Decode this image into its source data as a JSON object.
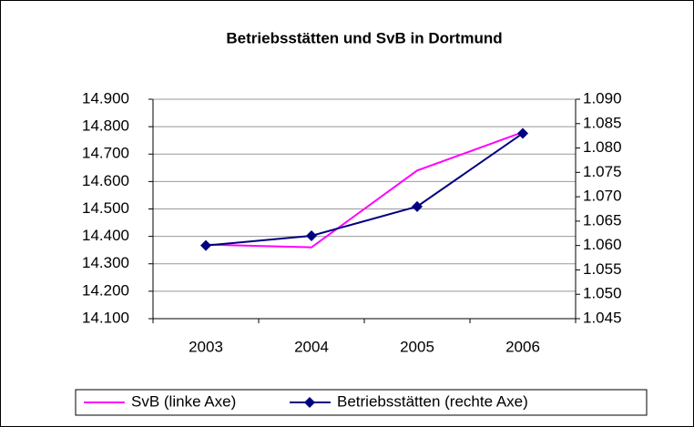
{
  "chart_data": {
    "type": "line",
    "title": "Betriebsstätten und SvB in Dortmund",
    "categories": [
      "2003",
      "2004",
      "2005",
      "2006"
    ],
    "series": [
      {
        "name": "SvB (linke Axe)",
        "color": "#ff00ff",
        "values": [
          14370,
          14360,
          14640,
          14780
        ]
      },
      {
        "name": "Betriebsstätten (rechte Axe)",
        "color": "#000080",
        "values": [
          1060,
          1062,
          1068,
          1083
        ],
        "axis": "y2",
        "marker": "diamond"
      }
    ],
    "ylim": [
      14100,
      14900
    ],
    "yticks": [
      {
        "value": 14100,
        "label": "14.100"
      },
      {
        "value": 14200,
        "label": "14.200"
      },
      {
        "value": 14300,
        "label": "14.300"
      },
      {
        "value": 14400,
        "label": "14.400"
      },
      {
        "value": 14500,
        "label": "14.500"
      },
      {
        "value": 14600,
        "label": "14.600"
      },
      {
        "value": 14700,
        "label": "14.700"
      },
      {
        "value": 14800,
        "label": "14.800"
      },
      {
        "value": 14900,
        "label": "14.900"
      }
    ],
    "y2lim": [
      1045,
      1090
    ],
    "y2ticks": [
      {
        "value": 1045,
        "label": "1.045"
      },
      {
        "value": 1050,
        "label": "1.050"
      },
      {
        "value": 1055,
        "label": "1.055"
      },
      {
        "value": 1060,
        "label": "1.060"
      },
      {
        "value": 1065,
        "label": "1.065"
      },
      {
        "value": 1070,
        "label": "1.070"
      },
      {
        "value": 1075,
        "label": "1.075"
      },
      {
        "value": 1080,
        "label": "1.080"
      },
      {
        "value": 1085,
        "label": "1.085"
      },
      {
        "value": 1090,
        "label": "1.090"
      }
    ],
    "grid": true,
    "legend": "bottom"
  }
}
